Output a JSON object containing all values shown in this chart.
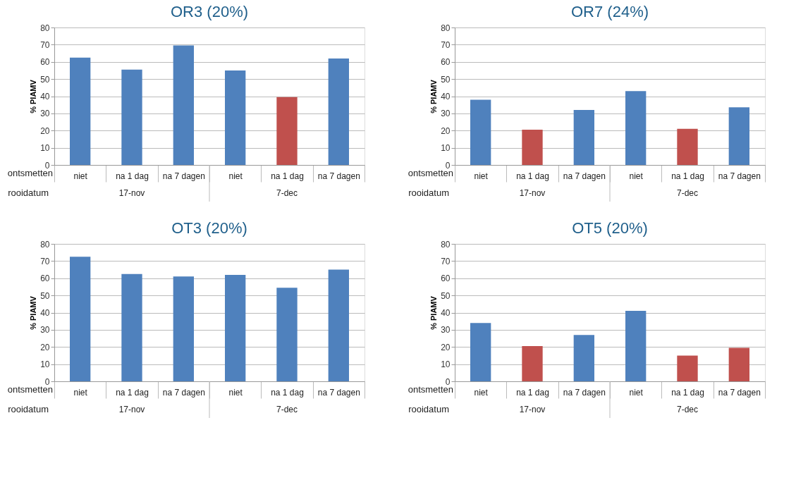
{
  "chart_data": [
    {
      "type": "bar",
      "title": "OR3 (20%)",
      "ylabel": "% PIAMV",
      "xlabel": "ontsmetten",
      "annotations": [
        "rooidatum",
        "17-nov",
        "7-dec"
      ],
      "categories": [
        "niet",
        "na 1 dag",
        "na 7 dagen",
        "niet",
        "na 1 dag",
        "na 7 dagen"
      ],
      "values": [
        62.5,
        55.5,
        69.5,
        55,
        39.5,
        62
      ],
      "colors": [
        "#4f81bd",
        "#4f81bd",
        "#4f81bd",
        "#4f81bd",
        "#c0504d",
        "#4f81bd"
      ],
      "ylim": [
        0,
        80
      ],
      "yticks": [
        0,
        10,
        20,
        30,
        40,
        50,
        60,
        70,
        80
      ],
      "grid": "y"
    },
    {
      "type": "bar",
      "title": "OR7 (24%)",
      "ylabel": "% PIAMV",
      "xlabel": "ontsmetten",
      "annotations": [
        "rooidatum",
        "17-nov",
        "7-dec"
      ],
      "categories": [
        "niet",
        "na 1 dag",
        "na 7 dagen",
        "niet",
        "na 1 dag",
        "na 7 dagen"
      ],
      "values": [
        38,
        20.5,
        32,
        43,
        21,
        33.5
      ],
      "colors": [
        "#4f81bd",
        "#c0504d",
        "#4f81bd",
        "#4f81bd",
        "#c0504d",
        "#4f81bd"
      ],
      "ylim": [
        0,
        80
      ],
      "yticks": [
        0,
        10,
        20,
        30,
        40,
        50,
        60,
        70,
        80
      ],
      "grid": "y"
    },
    {
      "type": "bar",
      "title": "OT3 (20%)",
      "ylabel": "% PIAMV",
      "xlabel": "ontsmetten",
      "annotations": [
        "rooidatum",
        "17-nov",
        "7-dec"
      ],
      "categories": [
        "niet",
        "na 1 dag",
        "na 7 dagen",
        "niet",
        "na 1 dag",
        "na 7 dagen"
      ],
      "values": [
        72.5,
        62.5,
        61,
        62,
        54.5,
        65
      ],
      "colors": [
        "#4f81bd",
        "#4f81bd",
        "#4f81bd",
        "#4f81bd",
        "#4f81bd",
        "#4f81bd"
      ],
      "ylim": [
        0,
        80
      ],
      "yticks": [
        0,
        10,
        20,
        30,
        40,
        50,
        60,
        70,
        80
      ],
      "grid": "y"
    },
    {
      "type": "bar",
      "title": "OT5 (20%)",
      "ylabel": "% PIAMV",
      "xlabel": "ontsmetten",
      "annotations": [
        "rooidatum",
        "17-nov",
        "7-dec"
      ],
      "categories": [
        "niet",
        "na 1 dag",
        "na 7 dagen",
        "niet",
        "na 1 dag",
        "na 7 dagen"
      ],
      "values": [
        34,
        20.5,
        27,
        41,
        15,
        19.5
      ],
      "colors": [
        "#4f81bd",
        "#c0504d",
        "#4f81bd",
        "#4f81bd",
        "#c0504d",
        "#c0504d"
      ],
      "ylim": [
        0,
        80
      ],
      "yticks": [
        0,
        10,
        20,
        30,
        40,
        50,
        60,
        70,
        80
      ],
      "grid": "y"
    }
  ]
}
